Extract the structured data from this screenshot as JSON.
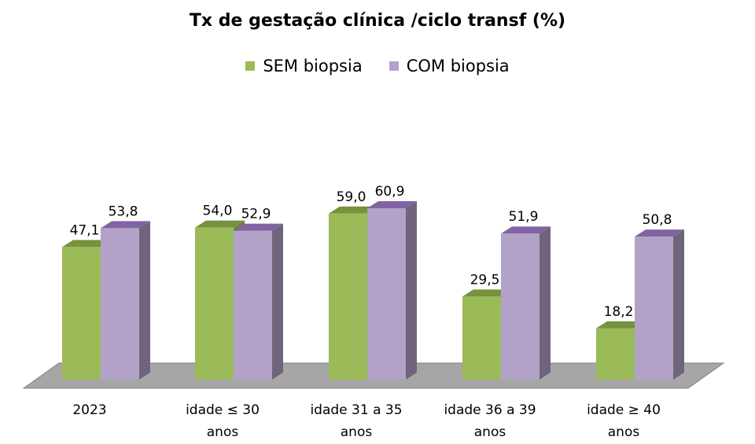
{
  "chart_data": {
    "type": "bar",
    "title": "Tx de gestação clínica /ciclo transf (%)",
    "categories": [
      "2023",
      "idade ≤ 30 anos",
      "idade 31 a 35 anos",
      "idade 36 a 39 anos",
      "idade ≥ 40 anos"
    ],
    "category_lines": [
      [
        "2023"
      ],
      [
        "idade ≤ 30",
        "anos"
      ],
      [
        "idade 31 a 35",
        "anos"
      ],
      [
        "idade 36 a 39",
        "anos"
      ],
      [
        "idade ≥ 40",
        "anos"
      ]
    ],
    "series": [
      {
        "name": "SEM biopsia",
        "values": [
          47.1,
          54.0,
          59.0,
          29.5,
          18.2
        ],
        "labels": [
          "47,1",
          "54,0",
          "59,0",
          "29,5",
          "18,2"
        ],
        "color": "#9bbb59",
        "top_color": "#76923c"
      },
      {
        "name": "COM biopsia",
        "values": [
          53.8,
          52.9,
          60.9,
          51.9,
          50.8
        ],
        "labels": [
          "53,8",
          "52,9",
          "60,9",
          "51,9",
          "50,8"
        ],
        "color": "#b3a2c7",
        "top_color": "#8064a2"
      }
    ],
    "ylim": [
      0,
      70
    ],
    "xlabel": "",
    "ylabel": "",
    "legend_position": "top",
    "grid": false,
    "three_d": true,
    "floor_color": "#a6a6a6"
  }
}
